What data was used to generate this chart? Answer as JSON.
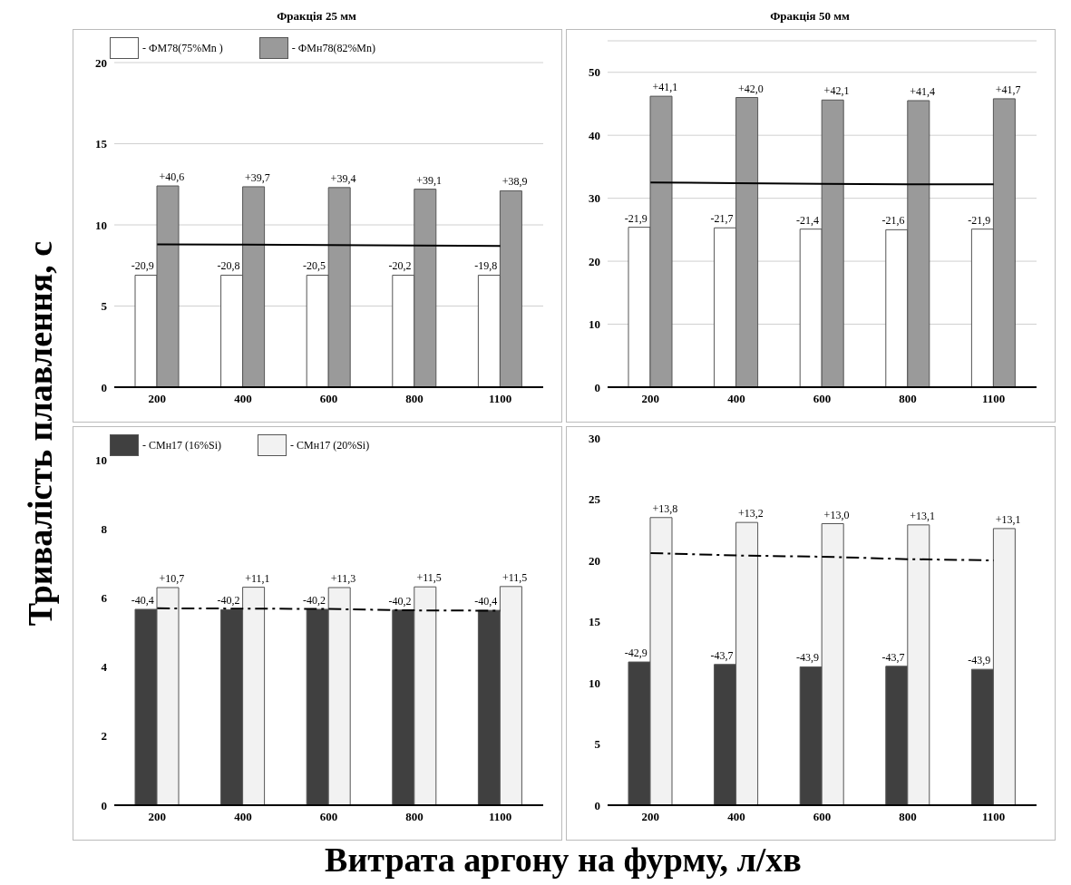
{
  "chart_data": [
    {
      "type": "bar",
      "title": "Фракція 25 мм",
      "ylabel": "Тривалість плавлення, с",
      "categories": [
        "200",
        "400",
        "600",
        "800",
        "1100"
      ],
      "ylim": [
        0,
        20
      ],
      "yticks": [
        0,
        5,
        10,
        15,
        20
      ],
      "grid": "y",
      "legend": "top left",
      "marker": "none",
      "series": [
        {
          "name": "- ФМ78(75%Mn )",
          "color": "#ffffff",
          "values": [
            6.9,
            6.9,
            6.9,
            6.9,
            6.9
          ]
        },
        {
          "name": "- ФМн78(82%Mn)",
          "color": "#9a9a9a",
          "values": [
            12.4,
            12.35,
            12.3,
            12.2,
            12.1
          ]
        },
        {
          "type": "line",
          "color": "#000000",
          "line_style": "solid",
          "values": [
            8.8,
            8.78,
            8.76,
            8.73,
            8.7
          ]
        }
      ],
      "annotations": [
        {
          "text": "-20,9",
          "x": "200",
          "y": 6.9
        },
        {
          "text": "-20,8",
          "x": "400",
          "y": 6.9
        },
        {
          "text": "-20,5",
          "x": "600",
          "y": 6.9
        },
        {
          "text": "-20,2",
          "x": "800",
          "y": 6.9
        },
        {
          "text": "-19,8",
          "x": "1100",
          "y": 6.9
        },
        {
          "text": "+40,6",
          "x": "200",
          "y": 12.4
        },
        {
          "text": "+39,7",
          "x": "400",
          "y": 12.35
        },
        {
          "text": "+39,4",
          "x": "600",
          "y": 12.3
        },
        {
          "text": "+39,1",
          "x": "800",
          "y": 12.2
        },
        {
          "text": "+38,9",
          "x": "1100",
          "y": 12.1
        }
      ]
    },
    {
      "type": "bar",
      "title": "Фракція 50 мм",
      "categories": [
        "200",
        "400",
        "600",
        "800",
        "1100"
      ],
      "ylim": [
        0,
        55
      ],
      "yticks": [
        0,
        10,
        20,
        30,
        40,
        50
      ],
      "grid": "y",
      "marker": "none",
      "series": [
        {
          "color": "#ffffff",
          "values": [
            25.4,
            25.3,
            25.1,
            25.0,
            25.1
          ]
        },
        {
          "color": "#9a9a9a",
          "values": [
            46.2,
            46.0,
            45.6,
            45.5,
            45.8
          ]
        },
        {
          "type": "line",
          "color": "#000000",
          "line_style": "solid",
          "values": [
            32.5,
            32.4,
            32.3,
            32.2,
            32.2
          ]
        }
      ],
      "annotations": [
        {
          "text": "-21,9",
          "x": "200",
          "y": 25.4
        },
        {
          "text": "-21,7",
          "x": "400",
          "y": 25.3
        },
        {
          "text": "-21,4",
          "x": "600",
          "y": 25.1
        },
        {
          "text": "-21,6",
          "x": "800",
          "y": 25.0
        },
        {
          "text": "-21,9",
          "x": "1100",
          "y": 25.1
        },
        {
          "text": "+41,1",
          "x": "200",
          "y": 46.2
        },
        {
          "text": "+42,0",
          "x": "400",
          "y": 46.0
        },
        {
          "text": "+42,1",
          "x": "600",
          "y": 45.6
        },
        {
          "text": "+41,4",
          "x": "800",
          "y": 45.5
        },
        {
          "text": "+41,7",
          "x": "1100",
          "y": 45.8
        }
      ]
    },
    {
      "type": "bar",
      "xlabel": "Витрата аргону на фурму, л/хв",
      "categories": [
        "200",
        "400",
        "600",
        "800",
        "1100"
      ],
      "ylim": [
        0,
        10
      ],
      "yticks": [
        0,
        2,
        4,
        6,
        8,
        10
      ],
      "grid": false,
      "legend": "top left",
      "marker": "none",
      "series": [
        {
          "name": "- СМн17 (16%Si)",
          "color": "#404040",
          "values": [
            5.67,
            5.66,
            5.67,
            5.65,
            5.64
          ]
        },
        {
          "name": "- СМн17 (20%Si)",
          "color": "#f2f2f2",
          "values": [
            6.3,
            6.31,
            6.3,
            6.32,
            6.33
          ]
        },
        {
          "type": "line",
          "color": "#000000",
          "line_style": "dashed",
          "values": [
            5.7,
            5.69,
            5.68,
            5.64,
            5.63
          ]
        }
      ],
      "annotations": [
        {
          "text": "-40,4",
          "x": "200",
          "y": 5.67
        },
        {
          "text": "-40,2",
          "x": "400",
          "y": 5.66
        },
        {
          "text": "-40,2",
          "x": "600",
          "y": 5.67
        },
        {
          "text": "-40,2",
          "x": "800",
          "y": 5.65
        },
        {
          "text": "-40,4",
          "x": "1100",
          "y": 5.64
        },
        {
          "text": "+10,7",
          "x": "200",
          "y": 6.3
        },
        {
          "text": "+11,1",
          "x": "400",
          "y": 6.31
        },
        {
          "text": "+11,3",
          "x": "600",
          "y": 6.3
        },
        {
          "text": "+11,5",
          "x": "800",
          "y": 6.32
        },
        {
          "text": "+11,5",
          "x": "1100",
          "y": 6.33
        }
      ]
    },
    {
      "type": "bar",
      "categories": [
        "200",
        "400",
        "600",
        "800",
        "1100"
      ],
      "ylim": [
        0,
        30
      ],
      "yticks": [
        0,
        5,
        10,
        15,
        20,
        25,
        30
      ],
      "grid": false,
      "marker": "none",
      "series": [
        {
          "color": "#404040",
          "values": [
            11.7,
            11.5,
            11.3,
            11.35,
            11.1
          ]
        },
        {
          "color": "#f2f2f2",
          "values": [
            23.5,
            23.1,
            23.0,
            22.9,
            22.6
          ]
        },
        {
          "type": "line",
          "color": "#000000",
          "line_style": "dashed",
          "values": [
            20.6,
            20.4,
            20.3,
            20.1,
            20.0
          ]
        }
      ],
      "annotations": [
        {
          "text": "-42,9",
          "x": "200",
          "y": 11.7
        },
        {
          "text": "-43,7",
          "x": "400",
          "y": 11.5
        },
        {
          "text": "-43,9",
          "x": "600",
          "y": 11.3
        },
        {
          "text": "-43,7",
          "x": "800",
          "y": 11.35
        },
        {
          "text": "-43,9",
          "x": "1100",
          "y": 11.1
        },
        {
          "text": "+13,8",
          "x": "200",
          "y": 23.5
        },
        {
          "text": "+13,2",
          "x": "400",
          "y": 23.1
        },
        {
          "text": "+13,0",
          "x": "600",
          "y": 23.0
        },
        {
          "text": "+13,1",
          "x": "800",
          "y": 22.9
        },
        {
          "text": "+13,1",
          "x": "1100",
          "y": 22.6
        }
      ]
    }
  ]
}
